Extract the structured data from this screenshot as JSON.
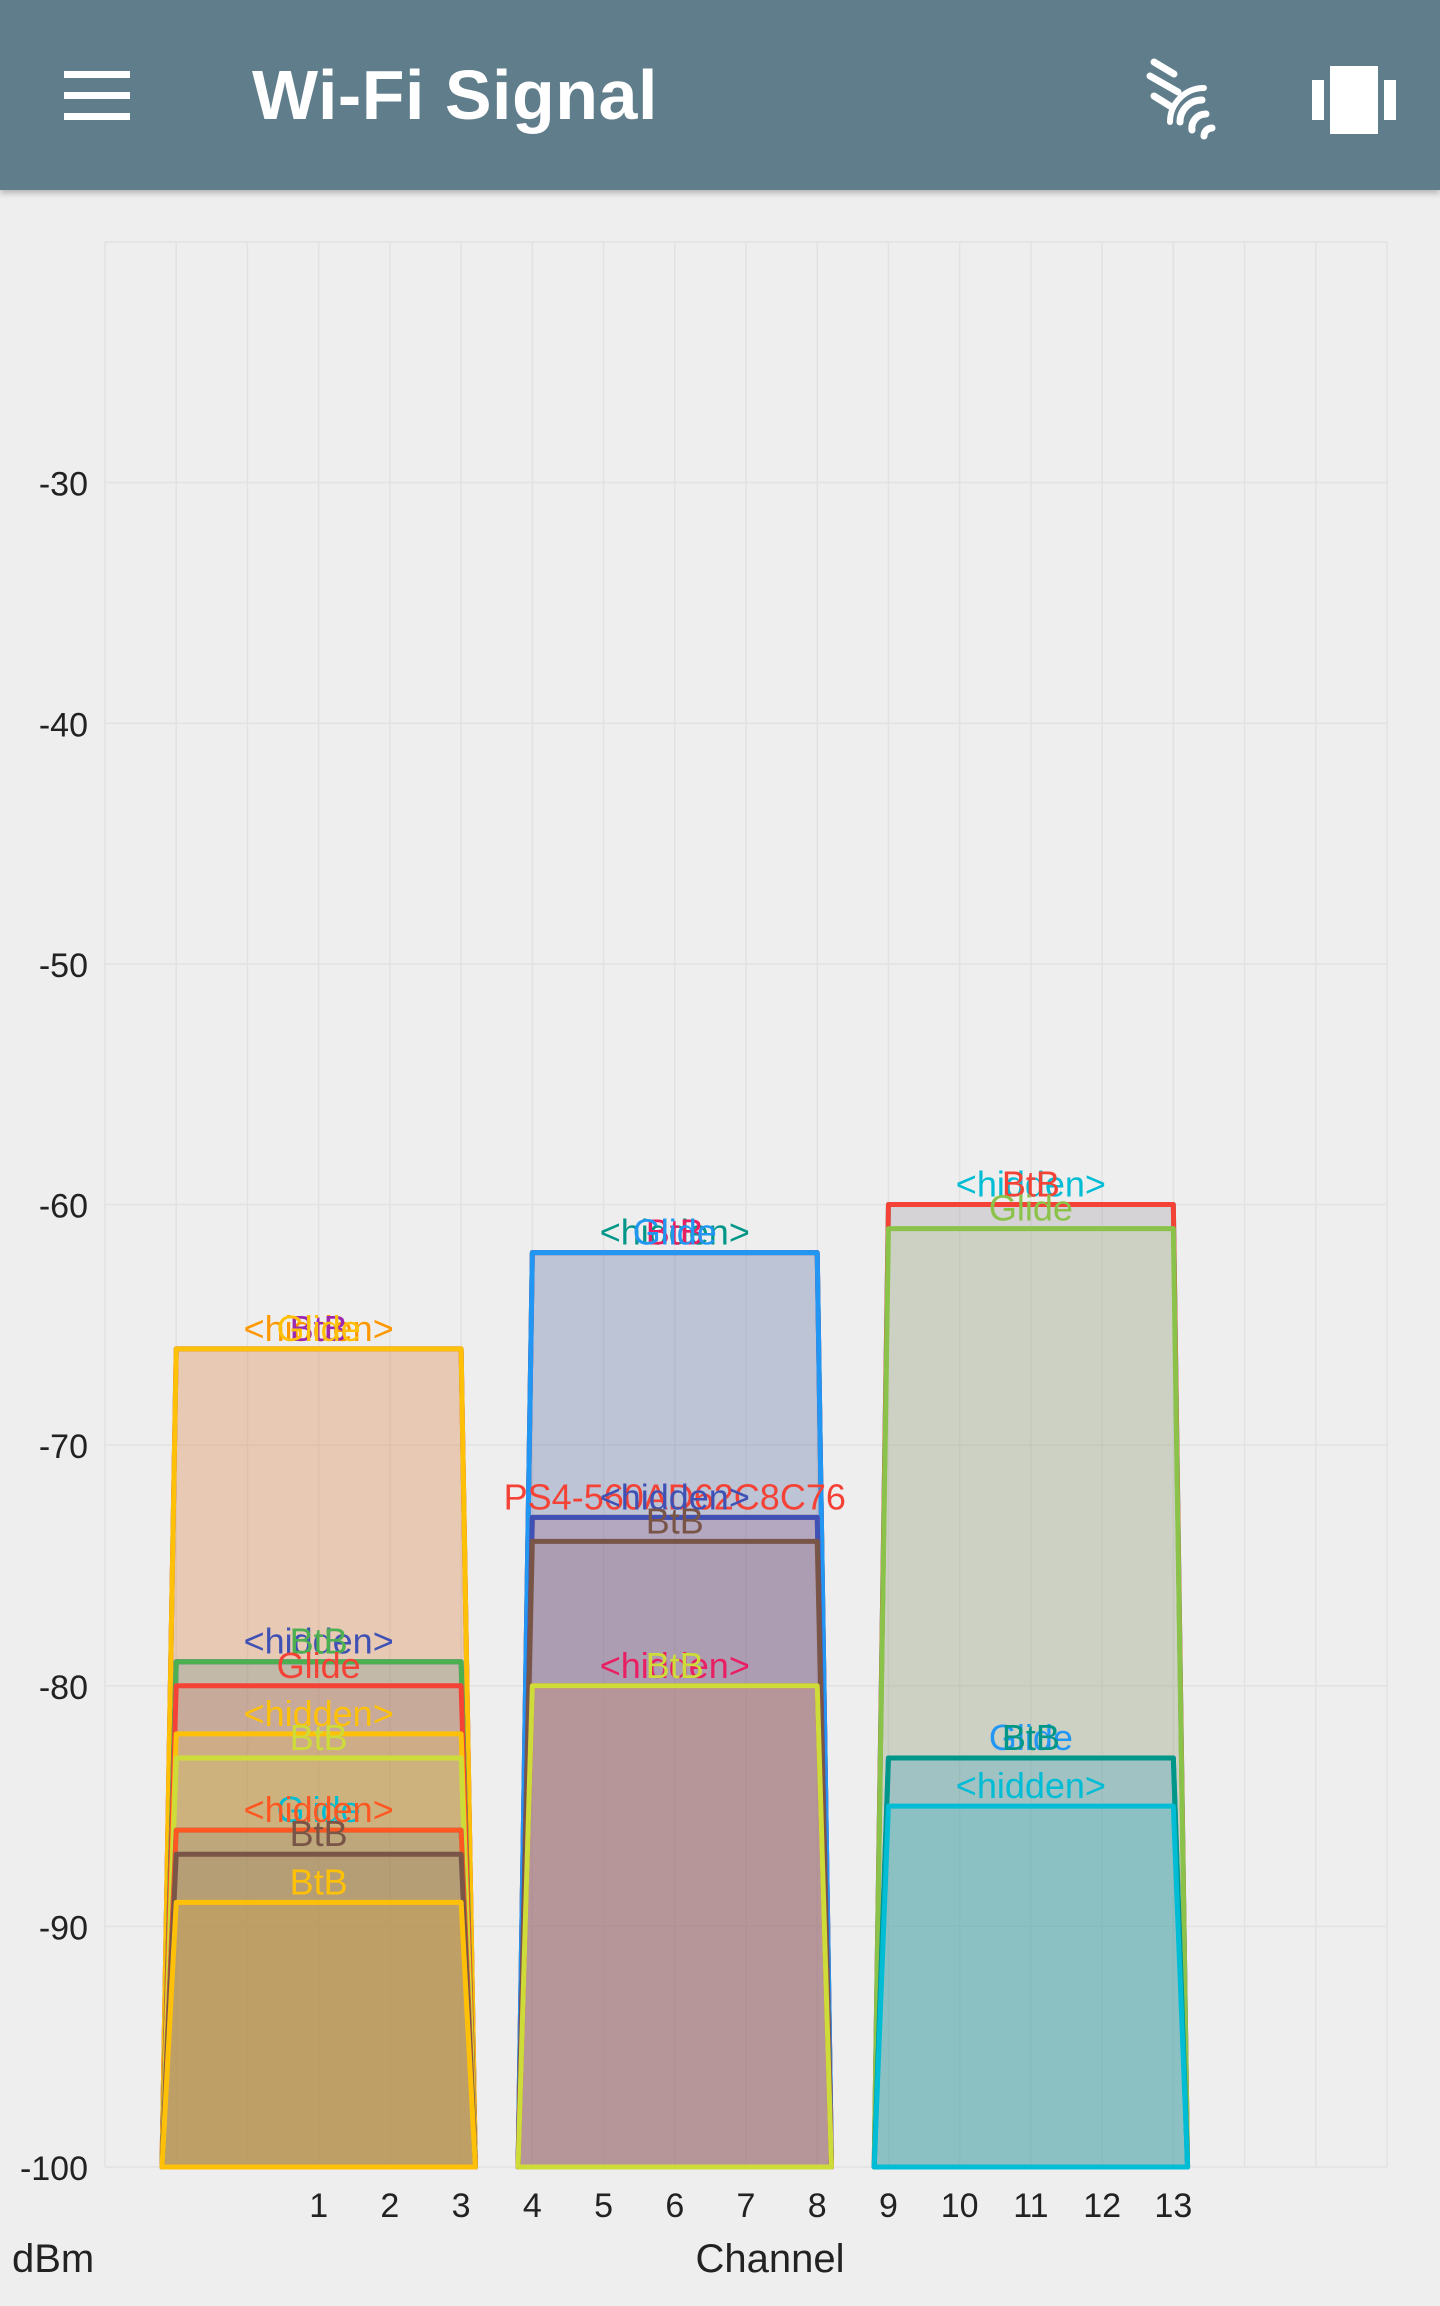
{
  "app": {
    "title": "Wi-Fi Signal",
    "menu_icon": "hamburger-menu-icon",
    "scan_icon": "wifi-scan-icon",
    "view_icon": "view-switch-icon",
    "bar_color": "#607d8b"
  },
  "chart_data": {
    "type": "area",
    "xlabel": "Channel",
    "ylabel": "dBm",
    "ylim": [
      -100,
      -20
    ],
    "yticks": [
      -30,
      -40,
      -50,
      -60,
      -70,
      -80,
      -90,
      -100
    ],
    "xticks": [
      1,
      2,
      3,
      4,
      5,
      6,
      7,
      8,
      9,
      10,
      11,
      12,
      13
    ],
    "xlim": [
      -2,
      16
    ],
    "grid": true,
    "series": [
      {
        "name": "<hidden>",
        "center": 11,
        "level": -60,
        "color": "#00bcd4"
      },
      {
        "name": "BtB",
        "center": 11,
        "level": -60,
        "color": "#f44336"
      },
      {
        "name": "Glide",
        "center": 11,
        "level": -61,
        "color": "#8bc34a"
      },
      {
        "name": "<hidden>",
        "center": 6,
        "level": -62,
        "color": "#009688"
      },
      {
        "name": "BtB",
        "center": 6,
        "level": -62,
        "color": "#e91e63"
      },
      {
        "name": "Glide",
        "center": 6,
        "level": -62,
        "color": "#2196f3"
      },
      {
        "name": "<hidden>",
        "center": 1,
        "level": -66,
        "color": "#ff9800"
      },
      {
        "name": "BtB",
        "center": 1,
        "level": -66,
        "color": "#9c27b0"
      },
      {
        "name": "Glide",
        "center": 1,
        "level": -66,
        "color": "#ffc107"
      },
      {
        "name": "PS4-560AD62C8C76",
        "center": 6,
        "level": -73,
        "color": "#f44336"
      },
      {
        "name": "<hidden>",
        "center": 6,
        "level": -73,
        "color": "#3f51b5"
      },
      {
        "name": "BtB",
        "center": 6,
        "level": -74,
        "color": "#795548"
      },
      {
        "name": "<hidden>",
        "center": 1,
        "level": -79,
        "color": "#3f51b5"
      },
      {
        "name": "BtB",
        "center": 1,
        "level": -79,
        "color": "#4caf50"
      },
      {
        "name": "Glide",
        "center": 1,
        "level": -80,
        "color": "#f44336"
      },
      {
        "name": "<hidden>",
        "center": 6,
        "level": -80,
        "color": "#e91e63"
      },
      {
        "name": "BtB",
        "center": 6,
        "level": -80,
        "color": "#cddc39"
      },
      {
        "name": "<hidden>",
        "center": 1,
        "level": -82,
        "color": "#ffc107"
      },
      {
        "name": "BtB",
        "center": 1,
        "level": -83,
        "color": "#cddc39"
      },
      {
        "name": "Glide",
        "center": 11,
        "level": -83,
        "color": "#2196f3"
      },
      {
        "name": "BtB",
        "center": 11,
        "level": -83,
        "color": "#009688"
      },
      {
        "name": "<hidden>",
        "center": 11,
        "level": -85,
        "color": "#00bcd4"
      },
      {
        "name": "Glide",
        "center": 1,
        "level": -86,
        "color": "#00bcd4"
      },
      {
        "name": "<hidden>",
        "center": 1,
        "level": -86,
        "color": "#ff5722"
      },
      {
        "name": "BtB",
        "center": 1,
        "level": -87,
        "color": "#795548"
      },
      {
        "name": "BtB",
        "center": 1,
        "level": -89,
        "color": "#ffc107"
      }
    ]
  }
}
